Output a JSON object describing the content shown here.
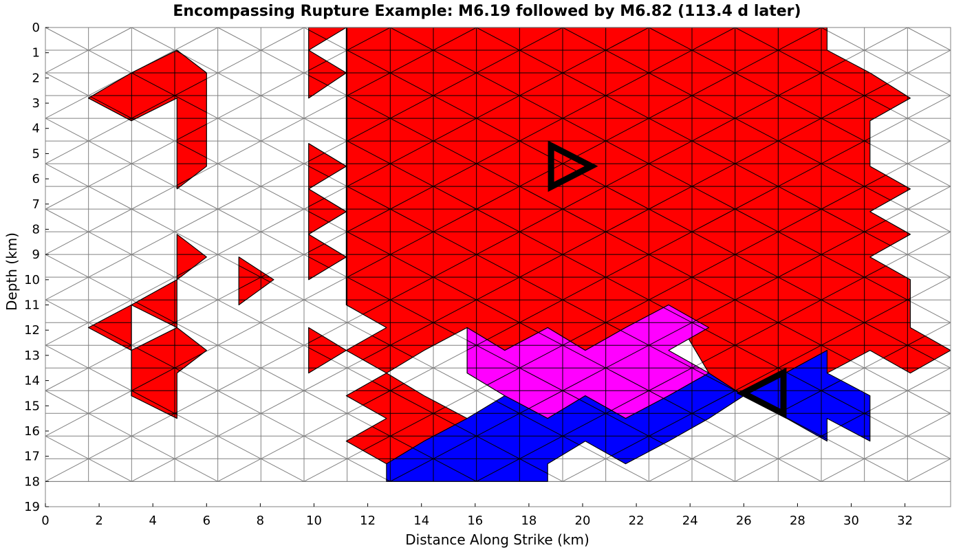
{
  "chart_data": {
    "type": "heatmap",
    "title": "Encompassing Rupture Example: M6.19 followed by M6.82 (113.4 d later)",
    "xlabel": "Distance Along Strike (km)",
    "ylabel": "Depth (km)",
    "xlim": [
      0,
      33.7
    ],
    "ylim": [
      19,
      0
    ],
    "x_ticks": [
      "0",
      "2",
      "4",
      "6",
      "8",
      "10",
      "12",
      "14",
      "16",
      "18",
      "20",
      "22",
      "24",
      "26",
      "28",
      "30",
      "32"
    ],
    "y_ticks": [
      "0",
      "1",
      "2",
      "3",
      "4",
      "5",
      "6",
      "7",
      "8",
      "9",
      "10",
      "11",
      "12",
      "13",
      "14",
      "15",
      "16",
      "17",
      "18",
      "19"
    ],
    "grid_extent": {
      "x": [
        0,
        33.7
      ],
      "depth": [
        0,
        18
      ]
    },
    "colors": {
      "first_rupture_only": "#ff0000",
      "second_rupture_only": "#0000ff",
      "both_ruptures": "#ff00ff",
      "unruptured": "#ffffff",
      "mesh_line": "#808080",
      "hypocenter_marker": "#000000"
    },
    "hypocenters": [
      {
        "event": "M6.19",
        "x": 19.4,
        "depth": 5.5
      },
      {
        "event": "M6.82",
        "x": 26.9,
        "depth": 14.5
      }
    ],
    "regions": [
      {
        "category": "first_rupture_only",
        "polygon": [
          [
            1.6,
            2.8
          ],
          [
            3.2,
            1.8
          ],
          [
            4.9,
            0.9
          ],
          [
            6.0,
            1.8
          ],
          [
            6.0,
            5.5
          ],
          [
            4.9,
            6.4
          ],
          [
            4.9,
            2.8
          ],
          [
            3.2,
            3.7
          ]
        ]
      },
      {
        "category": "first_rupture_only",
        "polygon": [
          [
            4.9,
            8.2
          ],
          [
            6.0,
            9.1
          ],
          [
            4.9,
            10.0
          ]
        ]
      },
      {
        "category": "first_rupture_only",
        "polygon": [
          [
            7.2,
            9.1
          ],
          [
            8.5,
            10.0
          ],
          [
            7.2,
            11.0
          ]
        ]
      },
      {
        "category": "first_rupture_only",
        "polygon": [
          [
            3.2,
            11.0
          ],
          [
            4.9,
            10.0
          ],
          [
            4.9,
            11.9
          ],
          [
            3.2,
            11.0
          ]
        ]
      },
      {
        "category": "first_rupture_only",
        "polygon": [
          [
            1.6,
            11.9
          ],
          [
            3.2,
            11.0
          ],
          [
            3.2,
            12.8
          ]
        ]
      },
      {
        "category": "first_rupture_only",
        "polygon": [
          [
            3.2,
            12.8
          ],
          [
            4.9,
            11.9
          ],
          [
            6.0,
            12.8
          ],
          [
            4.9,
            13.7
          ],
          [
            4.9,
            15.5
          ],
          [
            3.2,
            14.6
          ]
        ]
      },
      {
        "category": "first_rupture_only",
        "polygon": [
          [
            9.8,
            0
          ],
          [
            11.2,
            0
          ],
          [
            9.8,
            0.9
          ]
        ]
      },
      {
        "category": "first_rupture_only",
        "polygon": [
          [
            9.8,
            0.9
          ],
          [
            11.2,
            1.8
          ],
          [
            9.8,
            2.8
          ]
        ]
      },
      {
        "category": "first_rupture_only",
        "polygon": [
          [
            9.8,
            4.6
          ],
          [
            11.2,
            5.5
          ],
          [
            9.8,
            6.4
          ]
        ]
      },
      {
        "category": "first_rupture_only",
        "polygon": [
          [
            9.8,
            6.4
          ],
          [
            11.2,
            7.3
          ],
          [
            9.8,
            8.2
          ]
        ]
      },
      {
        "category": "first_rupture_only",
        "polygon": [
          [
            9.8,
            8.2
          ],
          [
            11.2,
            9.1
          ],
          [
            9.8,
            10.0
          ]
        ]
      },
      {
        "category": "first_rupture_only",
        "polygon": [
          [
            9.8,
            11.9
          ],
          [
            11.2,
            12.8
          ],
          [
            9.8,
            13.7
          ]
        ]
      },
      {
        "category": "first_rupture_only",
        "polygon": [
          [
            11.2,
            0
          ],
          [
            29.1,
            0
          ],
          [
            29.1,
            0.9
          ],
          [
            30.7,
            1.8
          ],
          [
            32.2,
            2.8
          ],
          [
            30.7,
            3.7
          ],
          [
            30.7,
            5.5
          ],
          [
            32.2,
            6.4
          ],
          [
            30.7,
            7.3
          ],
          [
            32.2,
            8.2
          ],
          [
            30.7,
            9.1
          ],
          [
            32.2,
            10.0
          ],
          [
            32.2,
            11.9
          ],
          [
            33.7,
            12.8
          ],
          [
            32.2,
            13.7
          ],
          [
            30.7,
            12.8
          ],
          [
            29.1,
            13.7
          ],
          [
            29.1,
            12.8
          ],
          [
            26.0,
            14.6
          ],
          [
            24.7,
            13.7
          ],
          [
            23.2,
            11.0
          ],
          [
            21.6,
            11.9
          ],
          [
            20.1,
            12.8
          ],
          [
            18.7,
            11.9
          ],
          [
            17.1,
            12.8
          ],
          [
            15.7,
            11.9
          ],
          [
            14.1,
            12.8
          ],
          [
            12.7,
            13.7
          ],
          [
            11.2,
            12.8
          ],
          [
            12.7,
            11.9
          ],
          [
            11.2,
            11.0
          ]
        ]
      },
      {
        "category": "first_rupture_only",
        "polygon": [
          [
            11.2,
            14.6
          ],
          [
            12.7,
            13.7
          ],
          [
            14.1,
            14.6
          ],
          [
            15.7,
            15.5
          ],
          [
            14.1,
            16.4
          ],
          [
            12.7,
            17.3
          ],
          [
            11.2,
            16.4
          ],
          [
            12.7,
            15.5
          ]
        ]
      },
      {
        "category": "both_ruptures",
        "polygon": [
          [
            15.7,
            11.9
          ],
          [
            17.1,
            12.8
          ],
          [
            18.7,
            11.9
          ],
          [
            20.1,
            12.8
          ],
          [
            21.6,
            11.9
          ],
          [
            23.2,
            11.0
          ],
          [
            24.7,
            11.9
          ],
          [
            23.2,
            12.8
          ],
          [
            24.7,
            13.7
          ],
          [
            23.2,
            14.6
          ],
          [
            21.6,
            15.5
          ],
          [
            20.1,
            14.6
          ],
          [
            18.7,
            15.5
          ],
          [
            17.1,
            14.6
          ],
          [
            15.7,
            13.7
          ]
        ]
      },
      {
        "category": "second_rupture_only",
        "polygon": [
          [
            12.7,
            17.3
          ],
          [
            14.1,
            16.4
          ],
          [
            15.7,
            15.5
          ],
          [
            17.1,
            14.6
          ],
          [
            18.7,
            15.5
          ],
          [
            20.1,
            14.6
          ],
          [
            21.6,
            15.5
          ],
          [
            23.2,
            14.6
          ],
          [
            24.7,
            13.7
          ],
          [
            26.0,
            14.6
          ],
          [
            29.1,
            12.8
          ],
          [
            29.1,
            13.7
          ],
          [
            30.7,
            14.6
          ],
          [
            30.7,
            16.4
          ],
          [
            29.1,
            15.5
          ],
          [
            29.1,
            16.4
          ],
          [
            27.6,
            15.5
          ],
          [
            26.0,
            14.6
          ],
          [
            24.7,
            15.5
          ],
          [
            23.2,
            16.4
          ],
          [
            21.6,
            17.3
          ],
          [
            20.1,
            16.4
          ],
          [
            18.7,
            17.3
          ],
          [
            18.7,
            18
          ],
          [
            12.7,
            18
          ]
        ]
      }
    ]
  }
}
